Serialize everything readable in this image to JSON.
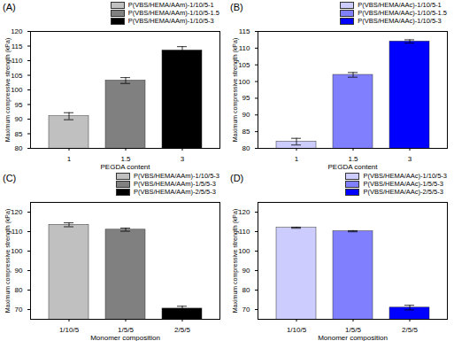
{
  "chart_data": [
    {
      "type": "bar",
      "title": "(A)",
      "xlabel": "PEGDA content",
      "ylabel": "Maximum compressive strength (kPa)",
      "categories": [
        "1",
        "1.5",
        "3"
      ],
      "series": [
        {
          "name": "P(VBS/HEMA/AAm)-1/10/5-1",
          "color": "#c0c0c0",
          "values": [
            91,
            null,
            null
          ],
          "errors": [
            1.2,
            null,
            null
          ]
        },
        {
          "name": "P(VBS/HEMA/AAm)-1/10/5-1.5",
          "color": "#808080",
          "values": [
            null,
            103.2,
            null
          ],
          "errors": [
            null,
            1.0,
            null
          ]
        },
        {
          "name": "P(VBS/HEMA/AAm)-1/10/5-3",
          "color": "#000000",
          "values": [
            null,
            null,
            113.5
          ],
          "errors": [
            null,
            null,
            1.3
          ]
        }
      ],
      "ylim": [
        80,
        120
      ],
      "yticks": [
        80,
        85,
        90,
        95,
        100,
        105,
        110,
        115,
        120
      ],
      "legend": "top-right"
    },
    {
      "type": "bar",
      "title": "(B)",
      "xlabel": "PEGDA content",
      "ylabel": "Maximum compressive strength (kPa)",
      "categories": [
        "1",
        "1.5",
        "3"
      ],
      "series": [
        {
          "name": "P(VBS/HEMA/AAc)-1/10/5-1",
          "color": "#ccccff",
          "values": [
            82,
            null,
            null
          ],
          "errors": [
            1.0,
            null,
            null
          ]
        },
        {
          "name": "P(VBS/HEMA/AAc)-1/10/5-1.5",
          "color": "#8080ff",
          "values": [
            null,
            102,
            null
          ],
          "errors": [
            null,
            0.7,
            null
          ]
        },
        {
          "name": "P(VBS/HEMA/AAc)-1/10/5-3",
          "color": "#0000ff",
          "values": [
            null,
            null,
            112
          ],
          "errors": [
            null,
            null,
            0.5
          ]
        }
      ],
      "ylim": [
        80,
        115
      ],
      "yticks": [
        80,
        85,
        90,
        95,
        100,
        105,
        110,
        115
      ],
      "legend": "top-right"
    },
    {
      "type": "bar",
      "title": "(C)",
      "xlabel": "Monomer composition",
      "ylabel": "Maximum compressive strength (kPa)",
      "categories": [
        "1/10/5",
        "1/5/5",
        "2/5/5"
      ],
      "series": [
        {
          "name": "P(VBS/HEMA/AAm)-1/10/5-3",
          "color": "#c0c0c0",
          "values": [
            113.5,
            null,
            null
          ],
          "errors": [
            1.0,
            null,
            null
          ]
        },
        {
          "name": "P(VBS/HEMA/AAm)-1/5/5-3",
          "color": "#808080",
          "values": [
            null,
            111,
            null
          ],
          "errors": [
            null,
            0.8,
            null
          ]
        },
        {
          "name": "P(VBS/HEMA/AAm)-2/5/5-3",
          "color": "#000000",
          "values": [
            null,
            null,
            70.5
          ],
          "errors": [
            null,
            null,
            1.2
          ]
        }
      ],
      "ylim": [
        65,
        125
      ],
      "yticks": [
        70,
        80,
        90,
        100,
        110,
        120
      ],
      "legend": "top-right"
    },
    {
      "type": "bar",
      "title": "(D)",
      "xlabel": "Monomer composition",
      "ylabel": "Maximum compressive strength (kPa)",
      "categories": [
        "1/10/5",
        "1/5/5",
        "2/5/5"
      ],
      "series": [
        {
          "name": "P(VBS/HEMA/AAc)-1/10/5-3",
          "color": "#ccccff",
          "values": [
            112,
            null,
            null
          ],
          "errors": [
            0.3,
            null,
            null
          ]
        },
        {
          "name": "P(VBS/HEMA/AAc)-1/5/5-3",
          "color": "#8080ff",
          "values": [
            null,
            110.2,
            null
          ],
          "errors": [
            null,
            0.3,
            null
          ]
        },
        {
          "name": "P(VBS/HEMA/AAc)-2/5/5-3",
          "color": "#0000ff",
          "values": [
            null,
            null,
            71
          ],
          "errors": [
            null,
            null,
            1.2
          ]
        }
      ],
      "ylim": [
        65,
        125
      ],
      "yticks": [
        70,
        80,
        90,
        100,
        110,
        120
      ],
      "legend": "top-right"
    }
  ]
}
